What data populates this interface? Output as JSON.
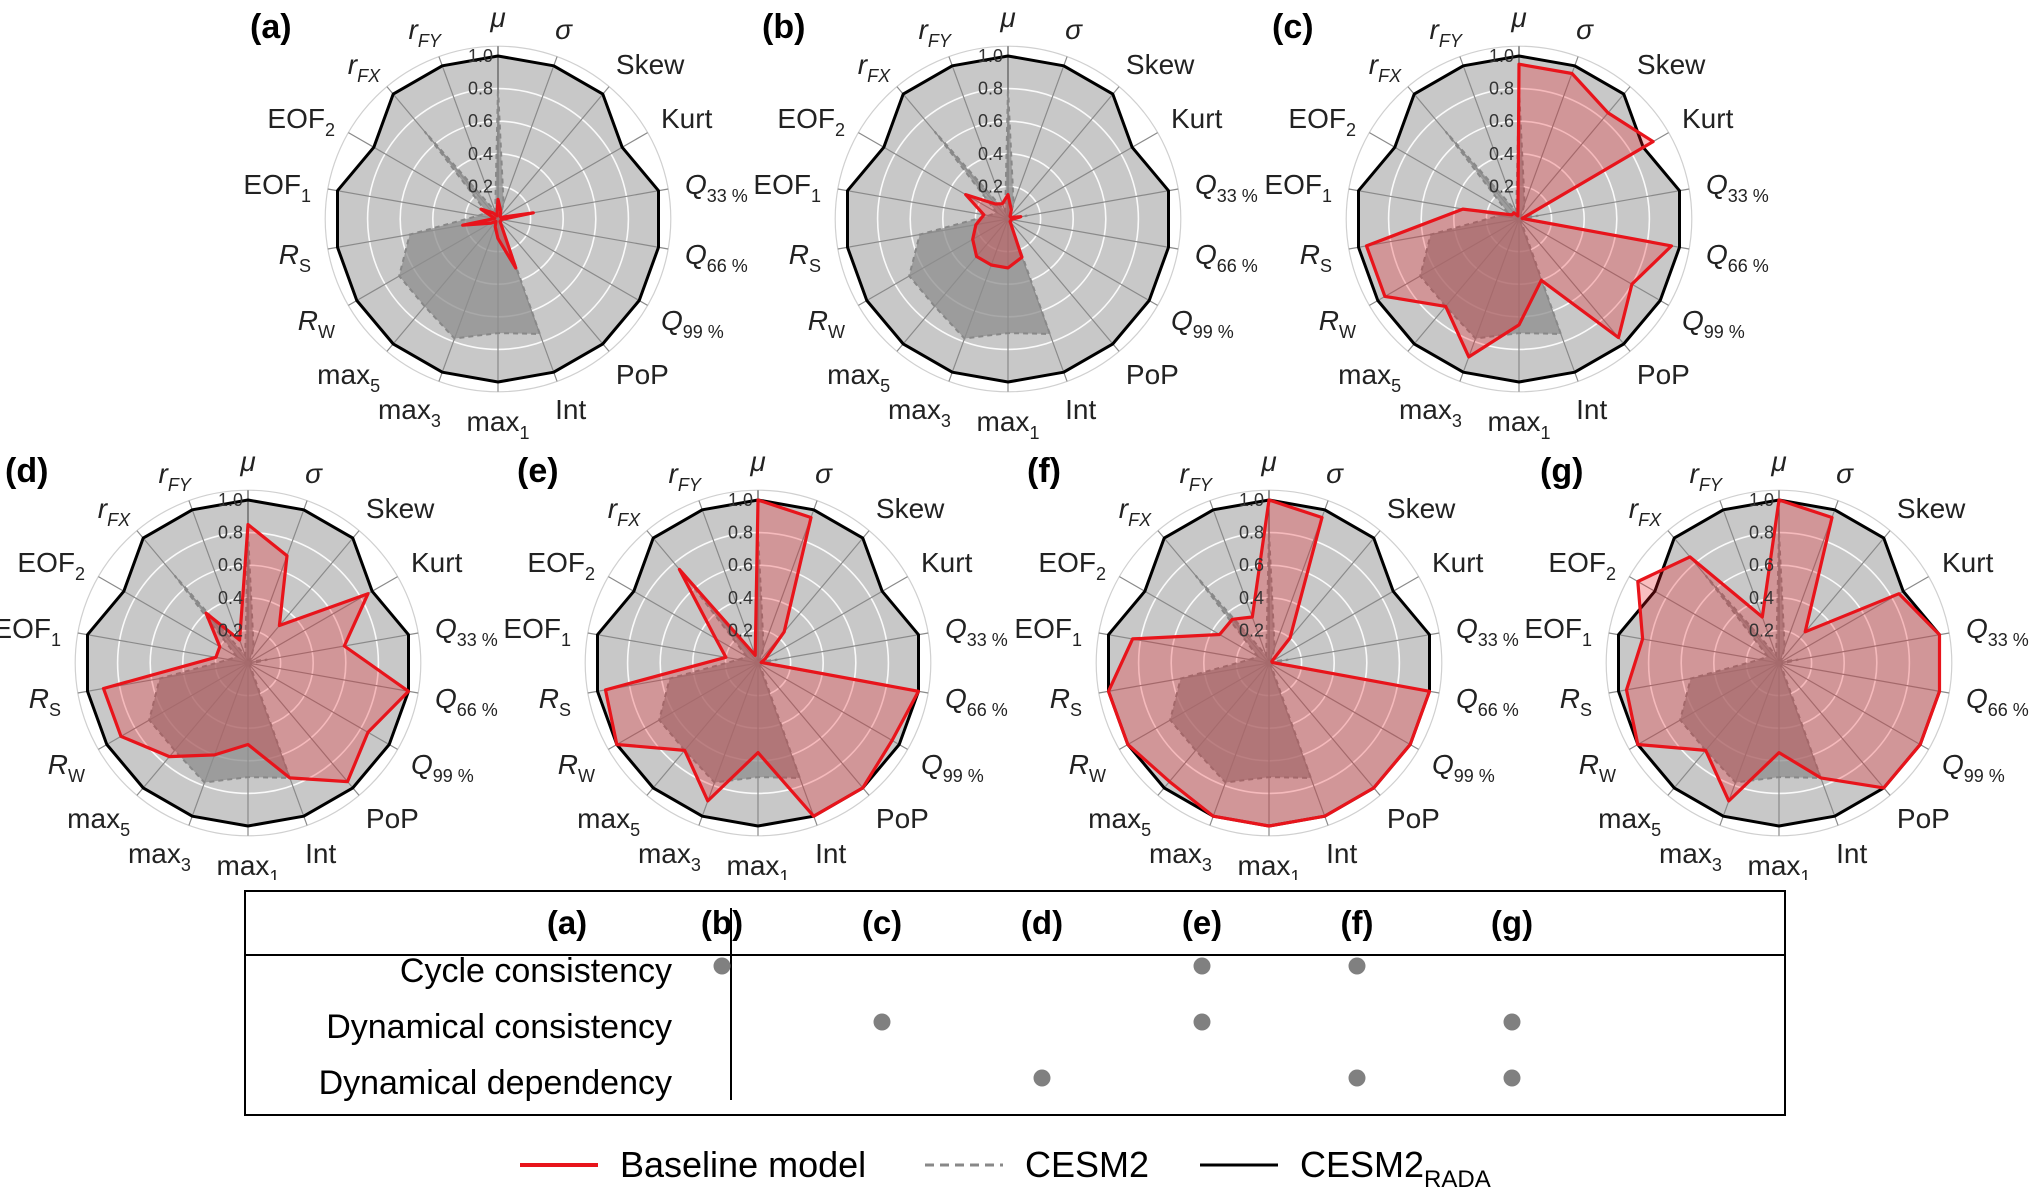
{
  "chart_data": {
    "type": "radar",
    "axes": [
      "μ",
      "σ",
      "Skew",
      "Kurt",
      "Q33%",
      "Q66%",
      "Q99%",
      "PoP",
      "Int",
      "max1",
      "max3",
      "max5",
      "RW",
      "RS",
      "EOF1",
      "EOF2",
      "rFX",
      "rFY"
    ],
    "axis_labels": [
      {
        "base": "μ",
        "sub": "",
        "italic": true
      },
      {
        "base": "σ",
        "sub": "",
        "italic": true
      },
      {
        "base": "Skew",
        "sub": "",
        "italic": false
      },
      {
        "base": "Kurt",
        "sub": "",
        "italic": false
      },
      {
        "base": "Q",
        "sub": "33 %",
        "italic": true
      },
      {
        "base": "Q",
        "sub": "66 %",
        "italic": true
      },
      {
        "base": "Q",
        "sub": "99 %",
        "italic": true
      },
      {
        "base": "PoP",
        "sub": "",
        "italic": false
      },
      {
        "base": "Int",
        "sub": "",
        "italic": false
      },
      {
        "base": "max",
        "sub": "1",
        "italic": false
      },
      {
        "base": "max",
        "sub": "3",
        "italic": false
      },
      {
        "base": "max",
        "sub": "5",
        "italic": false
      },
      {
        "base": "R",
        "sub": "W",
        "italic": true
      },
      {
        "base": "R",
        "sub": "S",
        "italic": true
      },
      {
        "base": "EOF",
        "sub": "1",
        "italic": false
      },
      {
        "base": "EOF",
        "sub": "2",
        "italic": false
      },
      {
        "base": "r",
        "sub": "FX",
        "italic": true
      },
      {
        "base": "r",
        "sub": "FY",
        "italic": true
      }
    ],
    "radial_ticks": [
      "0.2",
      "0.4",
      "0.6",
      "0.8",
      "1.0"
    ],
    "rlim": [
      0,
      1
    ],
    "reference_series": {
      "CESM2_RADA": [
        1.0,
        1.0,
        1.0,
        0.88,
        1.0,
        1.0,
        1.0,
        1.0,
        1.0,
        1.0,
        1.0,
        1.0,
        1.0,
        1.0,
        1.0,
        0.88,
        1.0,
        1.0
      ],
      "CESM2": [
        0.8,
        0.1,
        0.02,
        0.02,
        0.12,
        0.02,
        0.02,
        0.02,
        0.75,
        0.7,
        0.78,
        0.7,
        0.7,
        0.55,
        0.12,
        0.08,
        0.7,
        0.05
      ]
    },
    "panels": [
      {
        "label": "(a)",
        "baseline": [
          0.12,
          0.05,
          0.02,
          0.02,
          0.22,
          0.02,
          0.02,
          0.02,
          0.32,
          0.12,
          0.05,
          0.02,
          0.05,
          0.22,
          0.02,
          0.12,
          0.05,
          0.02
        ]
      },
      {
        "label": "(b)",
        "baseline": [
          0.15,
          0.06,
          0.02,
          0.02,
          0.08,
          0.02,
          0.02,
          0.02,
          0.25,
          0.3,
          0.3,
          0.3,
          0.25,
          0.2,
          0.15,
          0.3,
          0.12,
          0.1
        ]
      },
      {
        "label": "(c)",
        "baseline": [
          0.95,
          0.95,
          0.85,
          0.95,
          0.02,
          0.95,
          0.8,
          0.95,
          0.4,
          0.65,
          0.9,
          0.7,
          0.95,
          0.95,
          0.35,
          0.05,
          0.05,
          0.02
        ]
      },
      {
        "label": "(d)",
        "baseline": [
          0.85,
          0.7,
          0.3,
          0.85,
          0.6,
          1.0,
          0.85,
          0.95,
          0.75,
          0.5,
          0.6,
          0.75,
          0.9,
          0.9,
          0.2,
          0.2,
          0.4,
          0.15
        ]
      },
      {
        "label": "(e)",
        "baseline": [
          1.0,
          0.95,
          0.25,
          0.05,
          0.02,
          1.0,
          0.95,
          1.0,
          1.0,
          0.55,
          0.9,
          0.7,
          1.0,
          0.95,
          0.2,
          0.3,
          0.75,
          0.05
        ]
      },
      {
        "label": "(f)",
        "baseline": [
          1.0,
          0.95,
          0.2,
          0.02,
          0.02,
          1.0,
          1.0,
          1.0,
          1.0,
          1.0,
          1.0,
          0.95,
          1.0,
          1.0,
          0.85,
          0.35,
          0.35,
          0.3
        ]
      },
      {
        "label": "(g)",
        "baseline": [
          1.0,
          0.95,
          0.25,
          0.85,
          1.0,
          1.0,
          1.0,
          1.0,
          0.75,
          0.55,
          0.9,
          0.7,
          1.0,
          0.95,
          0.85,
          1.0,
          0.85,
          0.3
        ]
      }
    ],
    "colors": {
      "baseline": "#e8141b",
      "baseline_fill": "rgba(232,20,27,0.28)",
      "rada_fill": "#c8c8c8",
      "rada_line": "#000000",
      "cesm2_fill": "#8e8e8e",
      "cesm2_line": "#888888",
      "grid": "#ffffff"
    }
  },
  "table": {
    "columns": [
      "(a)",
      "(b)",
      "(c)",
      "(d)",
      "(e)",
      "(f)",
      "(g)"
    ],
    "rows": [
      {
        "label": "Cycle consistency",
        "marks": [
          "(b)",
          "(e)",
          "(f)"
        ]
      },
      {
        "label": "Dynamical consistency",
        "marks": [
          "(c)",
          "(e)",
          "(g)"
        ]
      },
      {
        "label": "Dynamical dependency",
        "marks": [
          "(d)",
          "(f)",
          "(g)"
        ]
      }
    ],
    "dot_color": "#808080"
  },
  "legend": {
    "baseline": {
      "label": "Baseline model",
      "color": "#e8141b",
      "style": "solid"
    },
    "cesm2": {
      "label": "CESM2",
      "color": "#888888",
      "style": "dashed"
    },
    "cesm2_rada": {
      "label": "CESM2",
      "sub": "RADA",
      "color": "#000000",
      "style": "solid"
    }
  }
}
